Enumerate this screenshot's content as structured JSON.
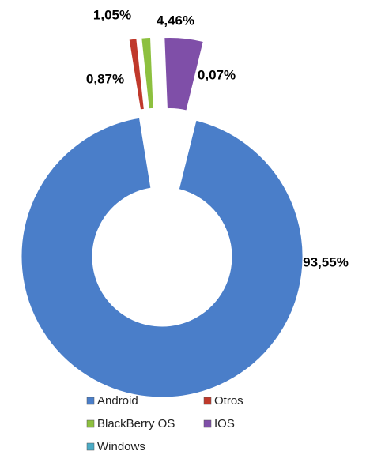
{
  "chart_data": {
    "type": "donut",
    "categories": [
      "Android",
      "Otros",
      "BlackBerry OS",
      "IOS",
      "Windows"
    ],
    "values": [
      93.55,
      0.87,
      1.05,
      4.46,
      0.07
    ],
    "value_labels": [
      "93,55%",
      "0,87%",
      "1,05%",
      "4,46%",
      "0,07%"
    ],
    "colors": [
      "#4a7ec9",
      "#c0392b",
      "#8dc03f",
      "#7f4fa8",
      "#4bacc6"
    ],
    "legend": "bottom"
  }
}
